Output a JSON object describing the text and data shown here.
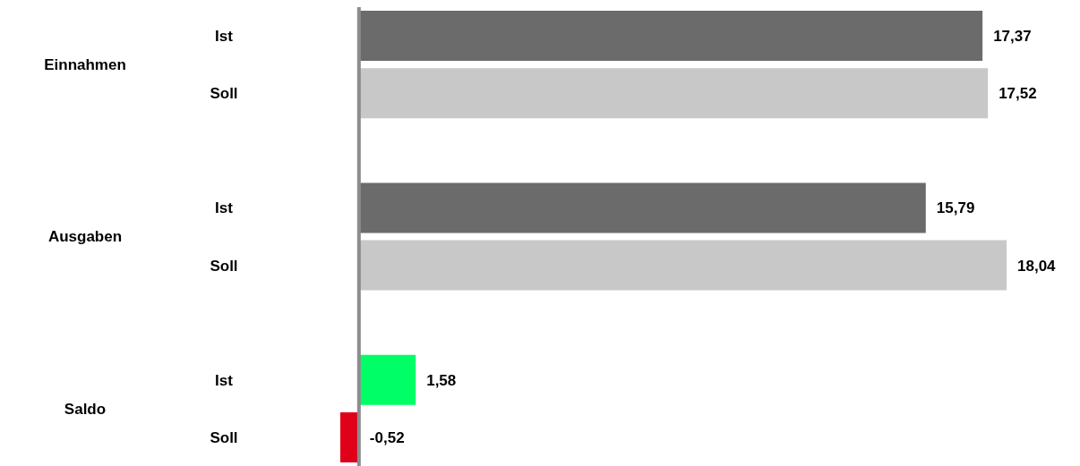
{
  "chart_data": {
    "type": "bar",
    "orientation": "horizontal",
    "categories": [
      "Ist",
      "Soll",
      "Ist",
      "Soll",
      "Ist",
      "Soll"
    ],
    "values": [
      17.37,
      17.52,
      15.79,
      18.04,
      1.58,
      -0.52
    ],
    "colors": [
      "#6b6b6b",
      "#c8c8c8",
      "#6b6b6b",
      "#c8c8c8",
      "#00ff66",
      "#e0001a"
    ],
    "value_labels": [
      "17,37",
      "17,52",
      "15,79",
      "18,04",
      "1,58",
      "-0,52"
    ],
    "annotations": [
      "Einnahmen",
      "Ausgaben",
      "Saldo"
    ]
  }
}
